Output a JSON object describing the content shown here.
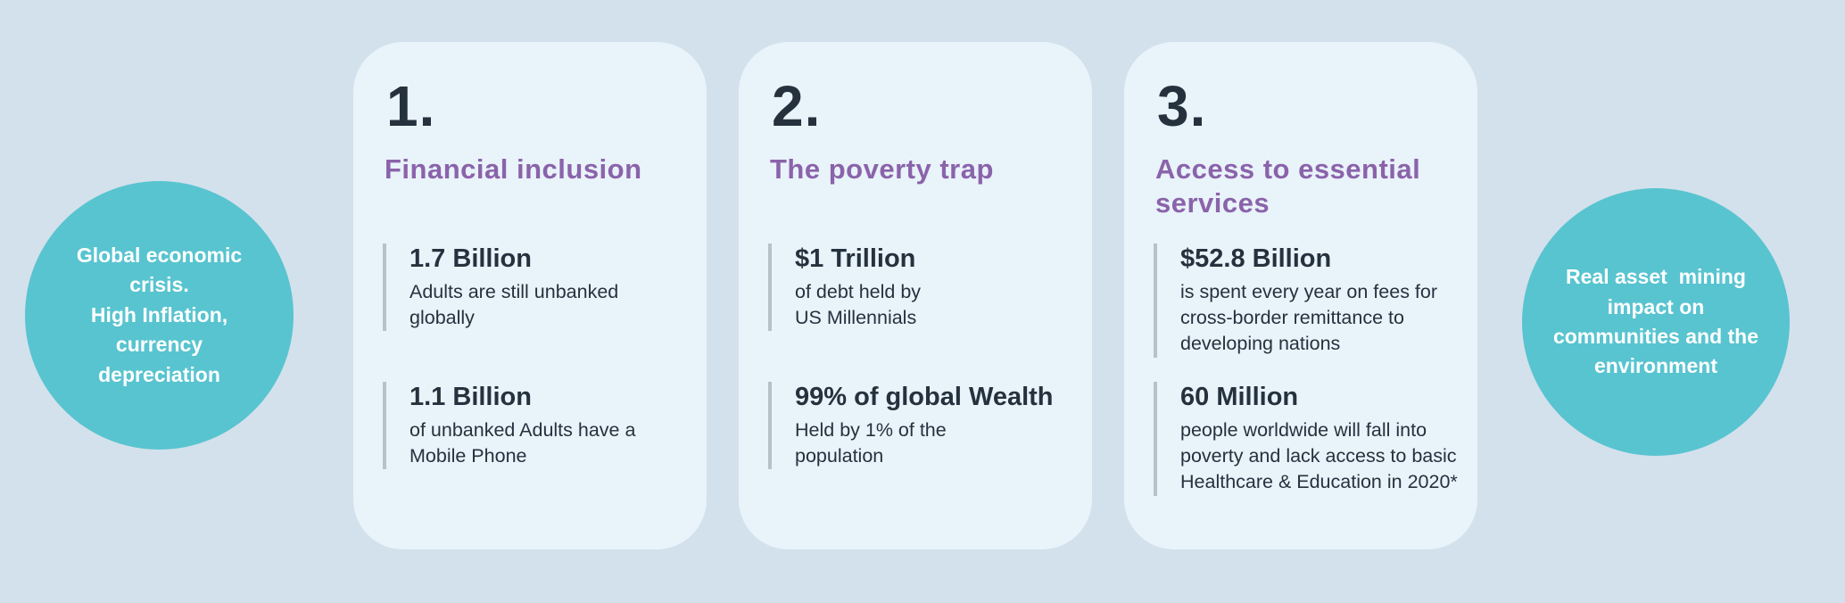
{
  "colors": {
    "background": "#d3e1ec",
    "card_background": "#e9f3fa",
    "circle_teal": "#58c4d0",
    "heading_purple": "#8a63aa",
    "text_dark_navy": "#25323e",
    "stat_divider_gray": "#b7c1c8",
    "circle_text_white": "#ffffff"
  },
  "left_circle": {
    "text": "Global economic\ncrisis.\nHigh Inflation,\ncurrency\ndepreciation"
  },
  "right_circle": {
    "text": "Real asset  mining\nimpact on\ncommunities and the\nenvironment"
  },
  "cards": [
    {
      "number": "1.",
      "title": "Financial inclusion",
      "stats": [
        {
          "value": "1.7 Billion",
          "desc": "Adults are still unbanked\nglobally"
        },
        {
          "value": "1.1 Billion",
          "desc": "of unbanked Adults have a\nMobile Phone"
        }
      ]
    },
    {
      "number": "2.",
      "title": "The poverty trap",
      "stats": [
        {
          "value": "$1 Trillion",
          "desc": "of debt held by\nUS Millennials"
        },
        {
          "value": "99% of global Wealth",
          "desc": "Held by 1% of the\npopulation"
        }
      ]
    },
    {
      "number": "3.",
      "title": "Access to essential\nservices",
      "stats": [
        {
          "value": "$52.8 Billion",
          "desc": "is spent every year on fees for\ncross-border remittance to\ndeveloping nations"
        },
        {
          "value": "60 Million",
          "desc": "people worldwide will fall into\npoverty and lack access to basic\nHealthcare & Education in 2020*"
        }
      ]
    }
  ]
}
